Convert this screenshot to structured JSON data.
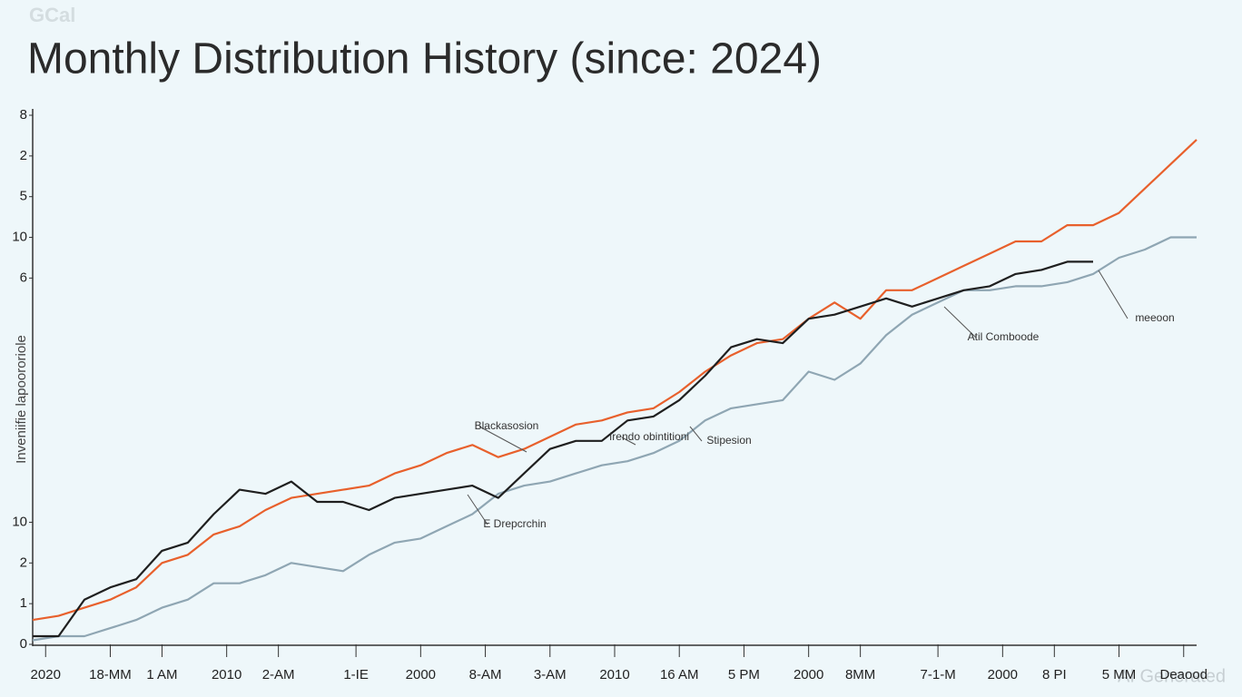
{
  "logo": "GCal",
  "watermark": "AI Generated",
  "chart_data": {
    "type": "line",
    "title": "Monthly Distribution History (since: 2024)",
    "y_label": "Inveniifie lapoororiole",
    "x": [
      0,
      2,
      4,
      6,
      8,
      10,
      12,
      14,
      16,
      18,
      20,
      22,
      24,
      26,
      28,
      30,
      32,
      34,
      36,
      38,
      40,
      42,
      44,
      46,
      48,
      50,
      52,
      54,
      56,
      58,
      60,
      62,
      64,
      66,
      68,
      70,
      72,
      74,
      76,
      78,
      80,
      82,
      84,
      86,
      88,
      90
    ],
    "xlim": [
      0,
      90
    ],
    "xticks": [
      {
        "value": 1,
        "label": "2020"
      },
      {
        "value": 6,
        "label": "18-MM"
      },
      {
        "value": 10,
        "label": "1 AM"
      },
      {
        "value": 15,
        "label": "2010"
      },
      {
        "value": 19,
        "label": "2-AM"
      },
      {
        "value": 25,
        "label": "1-IE"
      },
      {
        "value": 30,
        "label": "2000"
      },
      {
        "value": 35,
        "label": "8-AM"
      },
      {
        "value": 40,
        "label": "3-AM"
      },
      {
        "value": 45,
        "label": "2010"
      },
      {
        "value": 50,
        "label": "16 AM"
      },
      {
        "value": 55,
        "label": "5 PM"
      },
      {
        "value": 60,
        "label": "2000"
      },
      {
        "value": 64,
        "label": "8MM"
      },
      {
        "value": 70,
        "label": "7-1-M"
      },
      {
        "value": 75,
        "label": "2000"
      },
      {
        "value": 79,
        "label": "8 PI"
      },
      {
        "value": 84,
        "label": "5 MM"
      },
      {
        "value": 89,
        "label": "Deaood"
      }
    ],
    "ylim": [
      0,
      13
    ],
    "yticks": [
      0,
      1,
      2,
      {
        "value": 3,
        "label": "10"
      },
      {
        "value": 9,
        "label": "6"
      },
      10,
      {
        "value": 11,
        "label": "5"
      },
      {
        "value": 12,
        "label": "2"
      },
      {
        "value": 13,
        "label": "8"
      }
    ],
    "series": [
      {
        "color": "#e8602c",
        "values": [
          0.6,
          0.7,
          0.9,
          1.1,
          1.4,
          2.0,
          2.2,
          2.7,
          2.9,
          3.3,
          3.6,
          3.7,
          3.8,
          3.9,
          4.2,
          4.4,
          4.7,
          4.9,
          4.6,
          4.8,
          5.1,
          5.4,
          5.5,
          5.7,
          5.8,
          6.2,
          6.7,
          7.1,
          7.4,
          7.5,
          8.0,
          8.4,
          8.0,
          8.7,
          8.7,
          9.0,
          9.3,
          9.6,
          9.9,
          9.9,
          10.3,
          10.3,
          10.6,
          11.2,
          11.8,
          12.4
        ]
      },
      {
        "color": "#1f1f1f",
        "values": [
          0.2,
          0.2,
          1.1,
          1.4,
          1.6,
          2.3,
          2.5,
          3.2,
          3.8,
          3.7,
          4.0,
          3.5,
          3.5,
          3.3,
          3.6,
          3.7,
          3.8,
          3.9,
          3.6,
          4.2,
          4.8,
          5.0,
          5.0,
          5.5,
          5.6,
          6.0,
          6.6,
          7.3,
          7.5,
          7.4,
          8.0,
          8.1,
          8.3,
          8.5,
          8.3,
          8.5,
          8.7,
          8.8,
          9.1,
          9.2,
          9.4,
          9.4,
          null,
          null,
          null,
          null
        ]
      },
      {
        "color": "#8fa6b3",
        "values": [
          0.1,
          0.2,
          0.2,
          0.4,
          0.6,
          0.9,
          1.1,
          1.5,
          1.5,
          1.7,
          2.0,
          1.9,
          1.8,
          2.2,
          2.5,
          2.6,
          2.9,
          3.2,
          3.7,
          3.9,
          4.0,
          4.2,
          4.4,
          4.5,
          4.7,
          5.0,
          5.5,
          5.8,
          5.9,
          6.0,
          6.7,
          6.5,
          6.9,
          7.6,
          8.1,
          8.4,
          8.7,
          8.7,
          8.8,
          8.8,
          8.9,
          9.1,
          9.5,
          9.7,
          10.0,
          10.0
        ]
      }
    ],
    "annotations": [
      "Blackasosion",
      "Irendo obintitioni",
      "Stipesion",
      "E Drepcrchin",
      "Atil Comboode",
      "meeoon"
    ]
  }
}
